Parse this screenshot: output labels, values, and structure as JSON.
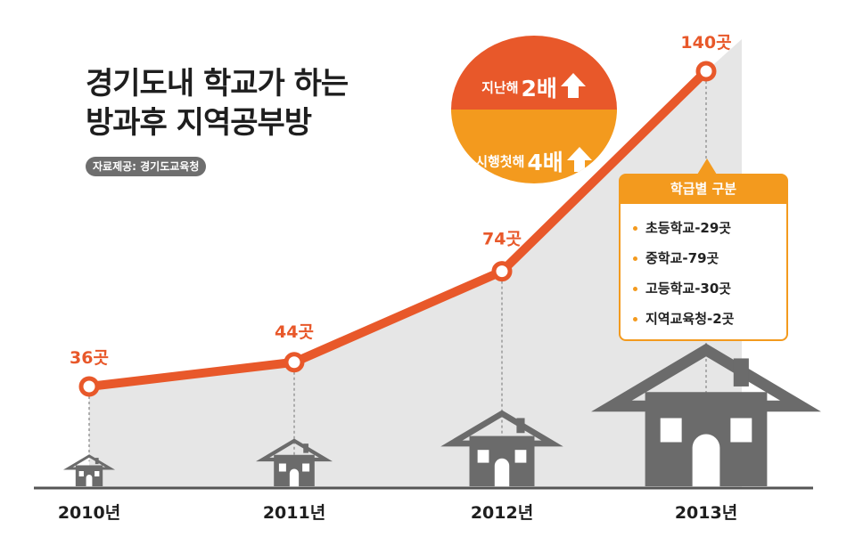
{
  "title_lines": [
    "경기도내 학교가 하는",
    "방과후 지역공부방"
  ],
  "source": "자료제공: 경기도교육청",
  "badge": {
    "row1_label": "지난해",
    "row1_value": "2배",
    "row2_label": "시행첫해",
    "row2_value": "4배",
    "arrow_icon": "up-arrow-icon",
    "colors": {
      "top": "#e8582a",
      "bottom": "#f39a1e"
    }
  },
  "breakdown": {
    "header": "학급별 구분",
    "items": [
      "초등학교-29곳",
      "중학교-79곳",
      "고등학교-30곳",
      "지역교육청-2곳"
    ]
  },
  "colors": {
    "line": "#e8582a",
    "accent": "#f39a1e",
    "area": "#e6e6e6",
    "house": "#6b6b6b"
  },
  "chart_data": {
    "type": "line",
    "categories": [
      "2010년",
      "2011년",
      "2012년",
      "2013년"
    ],
    "values": [
      36,
      44,
      74,
      140
    ],
    "value_labels": [
      "36곳",
      "44곳",
      "74곳",
      "140곳"
    ],
    "unit": "곳",
    "title": "",
    "xlabel": "",
    "ylabel": ""
  }
}
